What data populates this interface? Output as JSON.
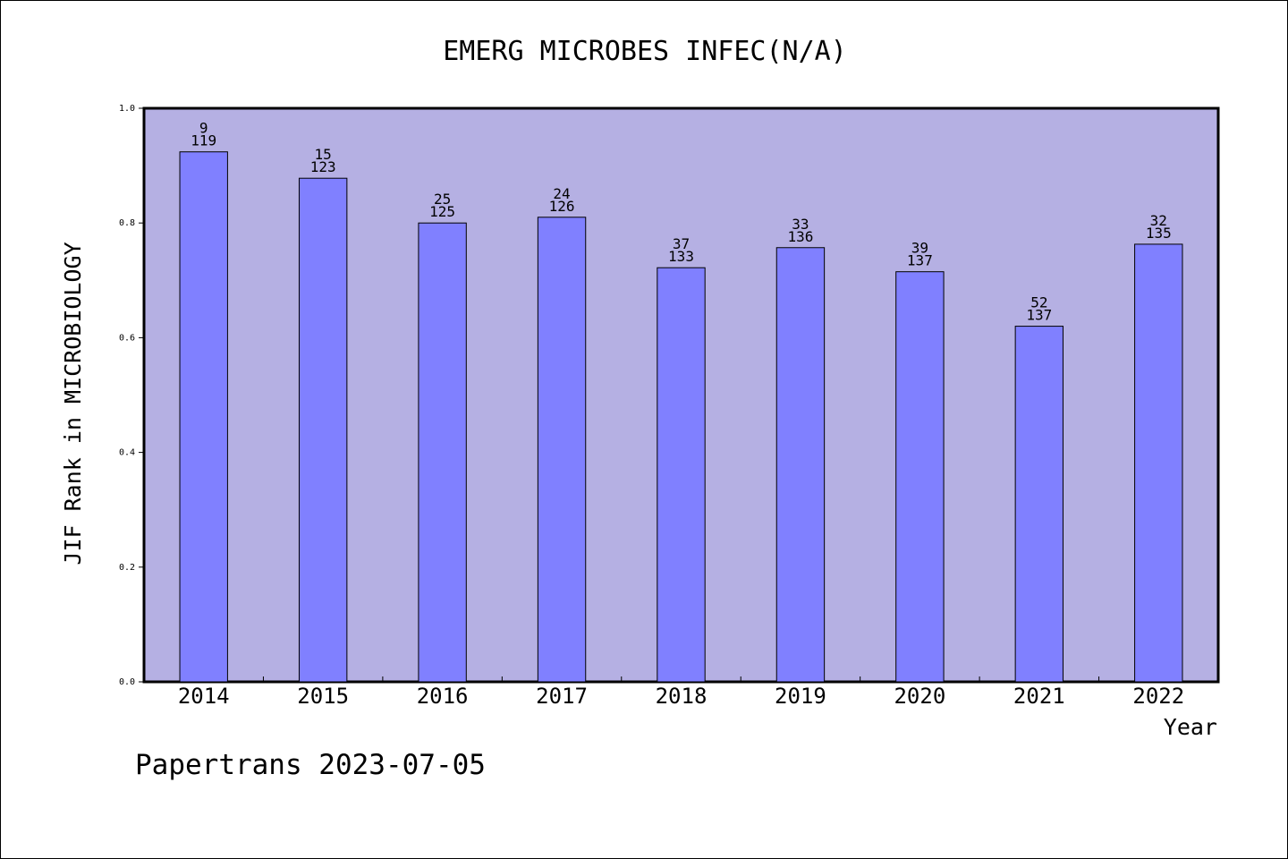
{
  "chart_data": {
    "type": "bar",
    "title": "EMERG MICROBES INFEC(N/A)",
    "xlabel": "Year",
    "ylabel": "JIF Rank in MICROBIOLOGY",
    "ylim": [
      0,
      1.0
    ],
    "yticks": [
      "0.0",
      "0.2",
      "0.4",
      "0.6",
      "0.8",
      "1.0"
    ],
    "categories": [
      "2014",
      "2015",
      "2016",
      "2017",
      "2018",
      "2019",
      "2020",
      "2021",
      "2022"
    ],
    "values": [
      0.924,
      0.878,
      0.8,
      0.81,
      0.722,
      0.757,
      0.715,
      0.62,
      0.763
    ],
    "rank_labels": [
      "9",
      "15",
      "25",
      "24",
      "37",
      "33",
      "39",
      "52",
      "32"
    ],
    "total_labels": [
      "119",
      "123",
      "125",
      "126",
      "133",
      "136",
      "137",
      "137",
      "135"
    ],
    "grid": false,
    "legend": "none",
    "colors": {
      "plot_background": "#b5b0e3",
      "bar_fill": "#8080ff",
      "bar_stroke": "#000000"
    }
  },
  "footer": "Papertrans 2023-07-05"
}
